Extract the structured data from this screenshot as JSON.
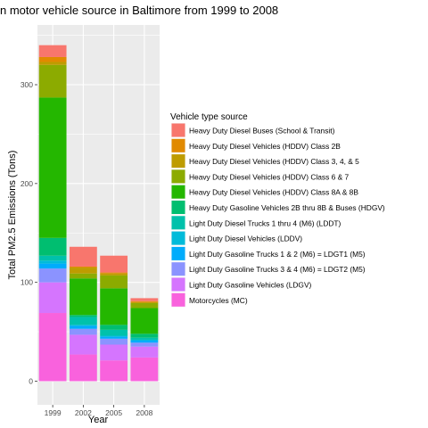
{
  "chart_data": {
    "type": "bar",
    "stacked": true,
    "title": "n motor vehicle source in Baltimore from 1999 to 2008",
    "xlabel": "Year",
    "ylabel": "Total PM2.5 Emissions (Tons)",
    "ylim": [
      0,
      360
    ],
    "yticks": [
      0,
      100,
      200,
      300
    ],
    "grid": true,
    "legend_position": "right",
    "legend_title": "Vehicle type source",
    "categories": [
      "1999",
      "2002",
      "2005",
      "2008"
    ],
    "series": [
      {
        "name": "Heavy Duty Diesel Buses (School & Transit)",
        "color": "#F8766D",
        "values": [
          12,
          20,
          17,
          3
        ]
      },
      {
        "name": "Heavy Duty Diesel Vehicles (HDDV) Class 2B",
        "color": "#E18A00",
        "values": [
          5,
          1,
          1,
          1
        ]
      },
      {
        "name": "Heavy Duty Diesel Vehicles (HDDV) Class 3, 4, & 5",
        "color": "#BE9C00",
        "values": [
          3,
          6,
          2,
          1
        ]
      },
      {
        "name": "Heavy Duty Diesel Vehicles (HDDV) Class 6 & 7",
        "color": "#8CAB00",
        "values": [
          33,
          5,
          13,
          5
        ]
      },
      {
        "name": "Heavy Duty Diesel Vehicles (HDDV) Class 8A & 8B",
        "color": "#24B700",
        "values": [
          142,
          37,
          37,
          26
        ]
      },
      {
        "name": "Heavy Duty Gasoline Vehicles 2B thru 8B & Buses (HDGV)",
        "color": "#00BE70",
        "values": [
          18,
          2,
          5,
          4
        ]
      },
      {
        "name": "Light Duty Diesel Trucks 1 thru 4 (M6) (LDDT)",
        "color": "#00C1AB",
        "values": [
          5,
          8,
          6,
          2
        ]
      },
      {
        "name": "Light Duty Diesel Vehicles (LDDV)",
        "color": "#00BBDA",
        "values": [
          3,
          1,
          1,
          1
        ]
      },
      {
        "name": "Light Duty Gasoline Trucks 1 & 2 (M6) = LDGT1 (M5)",
        "color": "#00ACFC",
        "values": [
          5,
          3,
          2,
          2
        ]
      },
      {
        "name": "Light Duty Gasoline Trucks 3 & 4 (M6) = LDGT2 (M5)",
        "color": "#8B93FF",
        "values": [
          14,
          6,
          6,
          4
        ]
      },
      {
        "name": "Light Duty Gasoline Vehicles (LDGV)",
        "color": "#D575FE",
        "values": [
          31,
          20,
          16,
          11
        ]
      },
      {
        "name": "Motorcycles (MC)",
        "color": "#F962DD",
        "values": [
          69,
          27,
          21,
          24
        ]
      }
    ]
  },
  "colors": {
    "panel_background": "#EBEBEB",
    "grid_line": "#FFFFFF"
  }
}
